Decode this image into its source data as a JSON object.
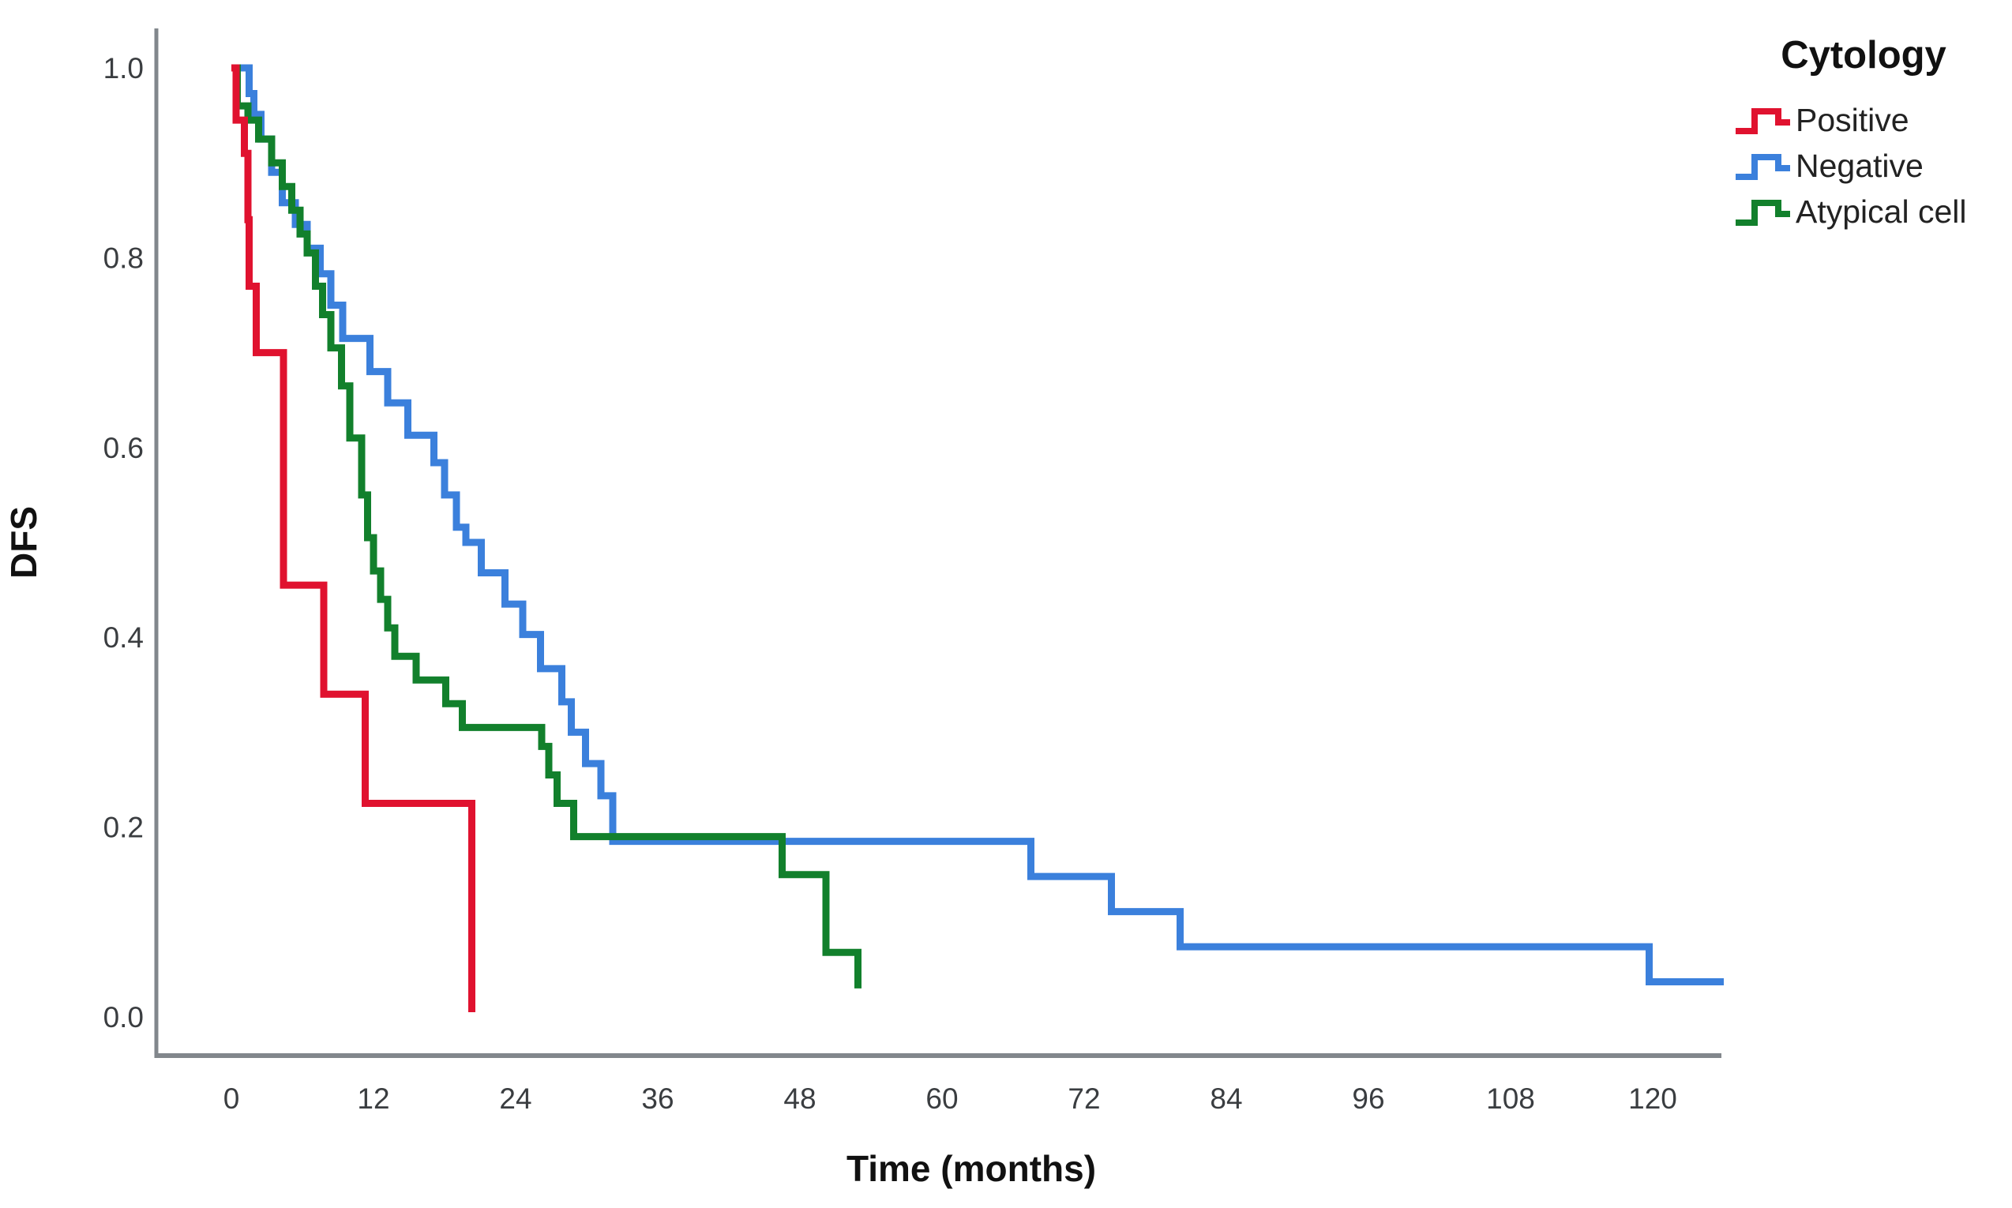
{
  "page": {
    "background": "#ffffff"
  },
  "chart_data": {
    "type": "line",
    "chart_kind": "kaplan_meier_step",
    "title": "",
    "xlabel": "Time (months)",
    "ylabel": "DFS",
    "xlim": [
      -6.3,
      126
    ],
    "ylim": [
      0,
      1.04
    ],
    "grid": false,
    "legend_position": "top-right",
    "x_ticks": [
      0,
      12,
      24,
      36,
      48,
      60,
      72,
      84,
      96,
      108,
      120
    ],
    "x_tick_labels": [
      "0",
      "12",
      "24",
      "36",
      "48",
      "60",
      "72",
      "84",
      "96",
      "108",
      "120"
    ],
    "y_ticks": [
      0.0,
      0.2,
      0.4,
      0.6,
      0.8,
      1.0
    ],
    "y_tick_labels": [
      "0.0",
      "0.2",
      "0.4",
      "0.6",
      "0.8",
      "1.0"
    ],
    "axis_color": "#82878c",
    "tick_label_color": "#3a3d40",
    "text_color": "#111111",
    "legend": {
      "title": "Cytology",
      "entries": [
        {
          "label": "Positive",
          "color": "#e0122f"
        },
        {
          "label": "Negative",
          "color": "#3b80dc"
        },
        {
          "label": "Atypical cell",
          "color": "#12802c"
        }
      ]
    },
    "series": [
      {
        "name": "Negative",
        "color": "#3b80dc",
        "end_month": 126,
        "points": [
          [
            0,
            1.0
          ],
          [
            1.5,
            0.973
          ],
          [
            1.9,
            0.951
          ],
          [
            2.5,
            0.925
          ],
          [
            3.4,
            0.89
          ],
          [
            4.3,
            0.858
          ],
          [
            5.4,
            0.835
          ],
          [
            6.4,
            0.81
          ],
          [
            7.5,
            0.783
          ],
          [
            8.4,
            0.75
          ],
          [
            9.4,
            0.715
          ],
          [
            11.7,
            0.68
          ],
          [
            13.2,
            0.647
          ],
          [
            14.9,
            0.613
          ],
          [
            17.1,
            0.584
          ],
          [
            18.0,
            0.55
          ],
          [
            19.0,
            0.516
          ],
          [
            19.8,
            0.5
          ],
          [
            21.1,
            0.468
          ],
          [
            23.1,
            0.435
          ],
          [
            24.6,
            0.403
          ],
          [
            26.1,
            0.367
          ],
          [
            27.9,
            0.332
          ],
          [
            28.7,
            0.3
          ],
          [
            29.9,
            0.267
          ],
          [
            31.2,
            0.233
          ],
          [
            32.2,
            0.185
          ],
          [
            67.5,
            0.148
          ],
          [
            74.3,
            0.111
          ],
          [
            80.1,
            0.074
          ],
          [
            119.7,
            0.037
          ]
        ]
      },
      {
        "name": "Atypical cell",
        "color": "#12802c",
        "end_month": null,
        "points": [
          [
            0,
            1.0
          ],
          [
            0.5,
            0.96
          ],
          [
            1.4,
            0.945
          ],
          [
            2.3,
            0.925
          ],
          [
            3.4,
            0.9
          ],
          [
            4.3,
            0.875
          ],
          [
            5.1,
            0.85
          ],
          [
            5.8,
            0.825
          ],
          [
            6.4,
            0.805
          ],
          [
            7.1,
            0.77
          ],
          [
            7.7,
            0.74
          ],
          [
            8.4,
            0.705
          ],
          [
            9.3,
            0.665
          ],
          [
            10.0,
            0.61
          ],
          [
            11.0,
            0.55
          ],
          [
            11.5,
            0.505
          ],
          [
            12.0,
            0.47
          ],
          [
            12.6,
            0.44
          ],
          [
            13.2,
            0.41
          ],
          [
            13.8,
            0.38
          ],
          [
            15.6,
            0.355
          ],
          [
            18.1,
            0.33
          ],
          [
            19.5,
            0.305
          ],
          [
            26.2,
            0.285
          ],
          [
            26.8,
            0.255
          ],
          [
            27.5,
            0.225
          ],
          [
            28.9,
            0.19
          ],
          [
            46.5,
            0.15
          ],
          [
            50.2,
            0.068
          ],
          [
            52.9,
            0.03
          ]
        ]
      },
      {
        "name": "Positive",
        "color": "#e0122f",
        "end_month": null,
        "points": [
          [
            0,
            1.0
          ],
          [
            0.4,
            0.945
          ],
          [
            1.1,
            0.91
          ],
          [
            1.4,
            0.84
          ],
          [
            1.5,
            0.77
          ],
          [
            2.1,
            0.7
          ],
          [
            4.4,
            0.455
          ],
          [
            7.8,
            0.34
          ],
          [
            11.3,
            0.225
          ],
          [
            20.3,
            0.005
          ]
        ]
      }
    ]
  }
}
